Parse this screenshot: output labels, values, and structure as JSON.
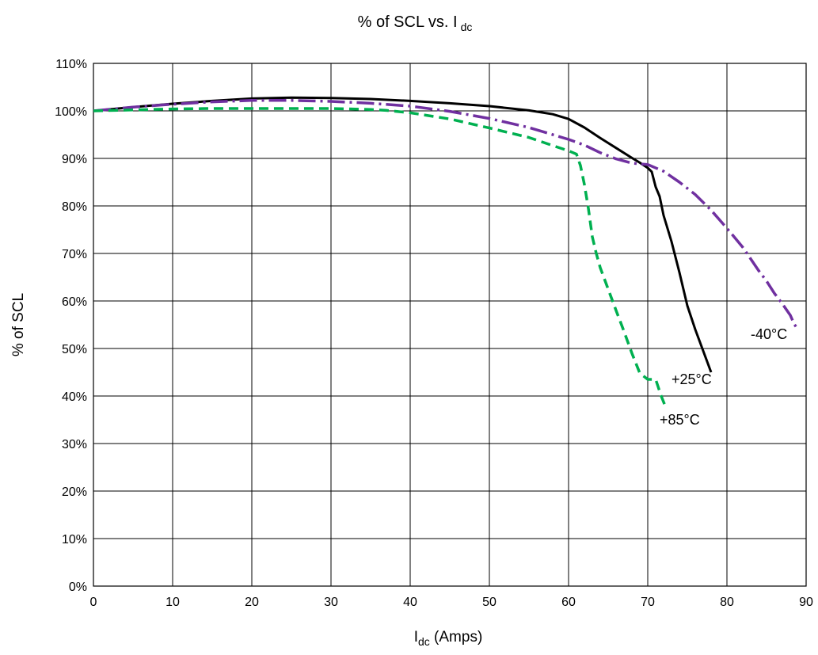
{
  "chart_data": {
    "type": "line",
    "title": {
      "main": "% of SCL vs. I",
      "sub": "dc"
    },
    "xlabel": {
      "main": "I",
      "sub": "dc",
      "rest": " (Amps)"
    },
    "ylabel": "% of SCL",
    "xlim": [
      0,
      90
    ],
    "ylim": [
      0,
      110
    ],
    "xticks": [
      "0",
      "10",
      "20",
      "30",
      "40",
      "50",
      "60",
      "70",
      "80",
      "90"
    ],
    "yticks": [
      "0%",
      "10%",
      "20%",
      "30%",
      "40%",
      "50%",
      "60%",
      "70%",
      "80%",
      "90%",
      "100%",
      "110%"
    ],
    "grid": true,
    "legend": "none",
    "series": [
      {
        "name": "+25°C",
        "color": "#000000",
        "style": "solid",
        "x": [
          0,
          5,
          10,
          15,
          20,
          25,
          30,
          35,
          40,
          45,
          50,
          55,
          58,
          60,
          62,
          64,
          66,
          68,
          69,
          70,
          70.5,
          71,
          71.5,
          72,
          73,
          74,
          75,
          76,
          77,
          78
        ],
        "y": [
          100,
          100.8,
          101.5,
          102.1,
          102.6,
          102.8,
          102.7,
          102.5,
          102.1,
          101.6,
          101,
          100.1,
          99.3,
          98.3,
          96.5,
          94.3,
          92.2,
          90.1,
          89.1,
          88,
          87.2,
          84,
          82,
          78,
          72.5,
          66,
          59,
          54,
          49.5,
          45
        ]
      },
      {
        "name": "-40°C",
        "color": "#7030A0",
        "style": "dash-dot",
        "x": [
          0,
          5,
          10,
          15,
          20,
          25,
          30,
          35,
          40,
          45,
          50,
          55,
          60,
          62,
          64,
          66,
          68,
          70,
          72,
          74,
          76,
          78,
          80,
          82,
          84,
          85,
          86,
          87,
          88,
          88.5,
          89
        ],
        "y": [
          100,
          100.8,
          101.4,
          101.9,
          102.2,
          102.2,
          102,
          101.6,
          101,
          99.9,
          98.4,
          96.5,
          94,
          92.8,
          91.2,
          89.9,
          89,
          88.7,
          87.3,
          85,
          82.4,
          79.1,
          75.3,
          71.3,
          66.4,
          64.2,
          61.6,
          59.4,
          57,
          55.1,
          54
        ]
      },
      {
        "name": "+85°C",
        "color": "#00B050",
        "style": "dashed",
        "x": [
          0,
          5,
          10,
          15,
          20,
          25,
          30,
          35,
          37,
          40,
          45,
          50,
          55,
          58,
          60,
          61,
          61.5,
          62,
          62.5,
          63,
          63.5,
          64,
          65,
          66,
          67,
          68,
          69,
          70,
          71,
          71.3,
          71.7,
          72.3
        ],
        "y": [
          100,
          100.2,
          100.4,
          100.5,
          100.5,
          100.5,
          100.5,
          100.3,
          100.1,
          99.6,
          98.3,
          96.4,
          94.4,
          92.7,
          91.6,
          90.9,
          88.5,
          84.5,
          79.5,
          73.5,
          70,
          67,
          62.5,
          58,
          53.6,
          49,
          44.8,
          43.5,
          43.5,
          42,
          40,
          37.5
        ]
      }
    ],
    "annotations": [
      {
        "text": "+25°C",
        "x": 73,
        "y": 42.5
      },
      {
        "text": "-40°C",
        "x": 83,
        "y": 52
      },
      {
        "text": "+85°C",
        "x": 71.5,
        "y": 34
      }
    ]
  }
}
